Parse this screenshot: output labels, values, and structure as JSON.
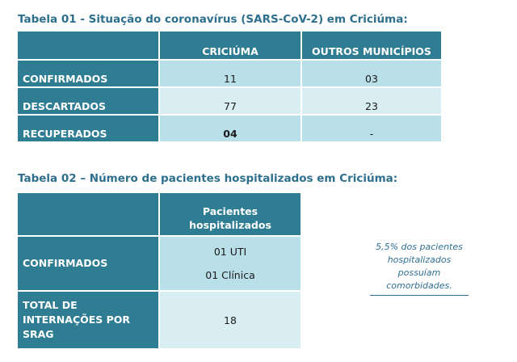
{
  "table1": {
    "title": "Tabela 01 - Situação do coronavírus (SARS-CoV-2) em Criciúma:",
    "headers": [
      "",
      "CRICIÚMA",
      "OUTROS MUNICÍPIOS"
    ],
    "rows": [
      {
        "label": "CONFIRMADOS",
        "criciuma": "11",
        "outros": "03"
      },
      {
        "label": "DESCARTADOS",
        "criciuma": "77",
        "outros": "23"
      },
      {
        "label": "RECUPERADOS",
        "criciuma": "04",
        "outros": "-"
      }
    ]
  },
  "table2": {
    "title": "Tabela 02 – Número de pacientes hospitalizados em Criciúma:",
    "header_line1": "Pacientes",
    "header_line2": "hospitalizados",
    "rows": [
      {
        "label": "CONFIRMADOS",
        "value_line1": "01 UTI",
        "value_line2": "01 Clínica"
      },
      {
        "label_line1": "TOTAL DE",
        "label_line2": "INTERNAÇÕES POR",
        "label_line3": "SRAG",
        "value": "18"
      }
    ]
  },
  "note": {
    "line1": "5,5% dos pacientes",
    "line2": "hospitalizados",
    "line3": "possuíam",
    "line4": "comorbidades."
  }
}
